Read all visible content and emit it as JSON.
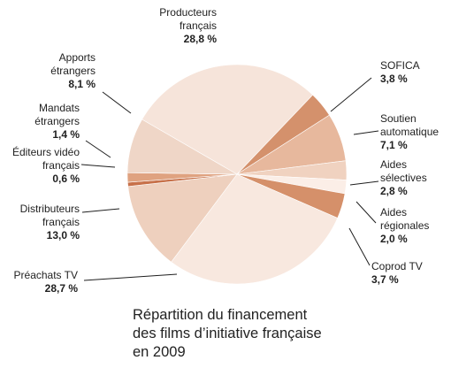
{
  "chart_data": {
    "type": "pie",
    "title_lines": [
      "Répartition du financement",
      "des films d’initiative française",
      "en 2009"
    ],
    "unit": "%",
    "slices": [
      {
        "label_lines": [
          "Producteurs",
          "français"
        ],
        "value_text": "28,8 %",
        "value": 28.8,
        "color": "#f6e4da"
      },
      {
        "label_lines": [
          "SOFICA"
        ],
        "value_text": "3,8 %",
        "value": 3.8,
        "color": "#d4916c"
      },
      {
        "label_lines": [
          "Soutien",
          "automatique"
        ],
        "value_text": "7,1 %",
        "value": 7.1,
        "color": "#e7b89d"
      },
      {
        "label_lines": [
          "Aides",
          "sélectives"
        ],
        "value_text": "2,8 %",
        "value": 2.8,
        "color": "#f0d2c0"
      },
      {
        "label_lines": [
          "Aides",
          "régionales"
        ],
        "value_text": "2,0 %",
        "value": 2.0,
        "color": "#fbeee7"
      },
      {
        "label_lines": [
          "Coprod TV"
        ],
        "value_text": "3,7 %",
        "value": 3.7,
        "color": "#d5906a"
      },
      {
        "label_lines": [
          "Préachats TV"
        ],
        "value_text": "28,7 %",
        "value": 28.7,
        "color": "#f8e8df"
      },
      {
        "label_lines": [
          "Distributeurs",
          "français"
        ],
        "value_text": "13,0 %",
        "value": 13.0,
        "color": "#eed0be"
      },
      {
        "label_lines": [
          "Éditeurs vidéo",
          "français"
        ],
        "value_text": "0,6 %",
        "value": 0.6,
        "color": "#c7714a"
      },
      {
        "label_lines": [
          "Mandats",
          "étrangers"
        ],
        "value_text": "1,4 %",
        "value": 1.4,
        "color": "#dfa280"
      },
      {
        "label_lines": [
          "Apports",
          "étrangers"
        ],
        "value_text": "8,1 %",
        "value": 8.1,
        "color": "#efd6c7"
      }
    ]
  }
}
